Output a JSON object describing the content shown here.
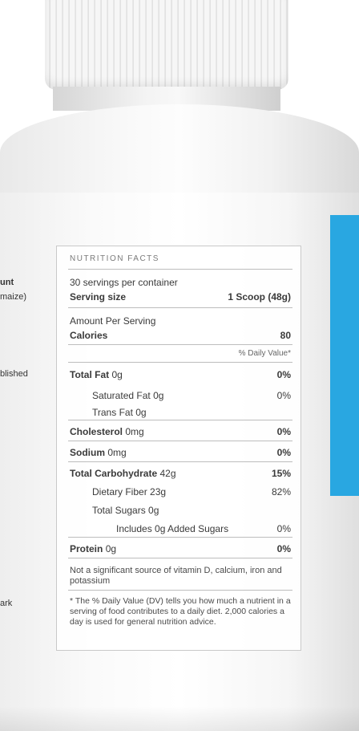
{
  "side_text": {
    "line1": "unt",
    "line2": "maize)",
    "line3": "blished",
    "line4": "ark"
  },
  "nutrition": {
    "heading": "NUTRITION FACTS",
    "servings": "30 servings per container",
    "serving_size_label": "Serving size",
    "serving_size_value": "1 Scoop (48g)",
    "amount_per_serving": "Amount Per Serving",
    "calories_label": "Calories",
    "calories_value": "80",
    "daily_value_header": "% Daily Value*",
    "rows": [
      {
        "label": "Total Fat",
        "amount": "0g",
        "dv": "0%"
      },
      {
        "label": "Saturated Fat",
        "amount": "0g",
        "dv": "0%"
      },
      {
        "label": "Trans Fat",
        "amount": "0g",
        "dv": ""
      },
      {
        "label": "Cholesterol",
        "amount": "0mg",
        "dv": "0%"
      },
      {
        "label": "Sodium",
        "amount": "0mg",
        "dv": "0%"
      },
      {
        "label": "Total Carbohydrate",
        "amount": "42g",
        "dv": "15%"
      },
      {
        "label": "Dietary Fiber",
        "amount": "23g",
        "dv": "82%"
      },
      {
        "label": "Total Sugars",
        "amount": "0g",
        "dv": ""
      },
      {
        "label": "Includes 0g Added Sugars",
        "amount": "",
        "dv": "0%"
      },
      {
        "label": "Protein",
        "amount": "0g",
        "dv": "0%"
      }
    ],
    "not_significant": "Not a significant source of vitamin D, calcium, iron and potassium",
    "footnote": "* The % Daily Value (DV) tells you how much a nutrient in a serving of food contributes to a daily diet. 2,000 calories a day is used for general nutrition advice."
  },
  "colors": {
    "accent_band": "#29a7e1",
    "bottle": "#ffffff"
  }
}
